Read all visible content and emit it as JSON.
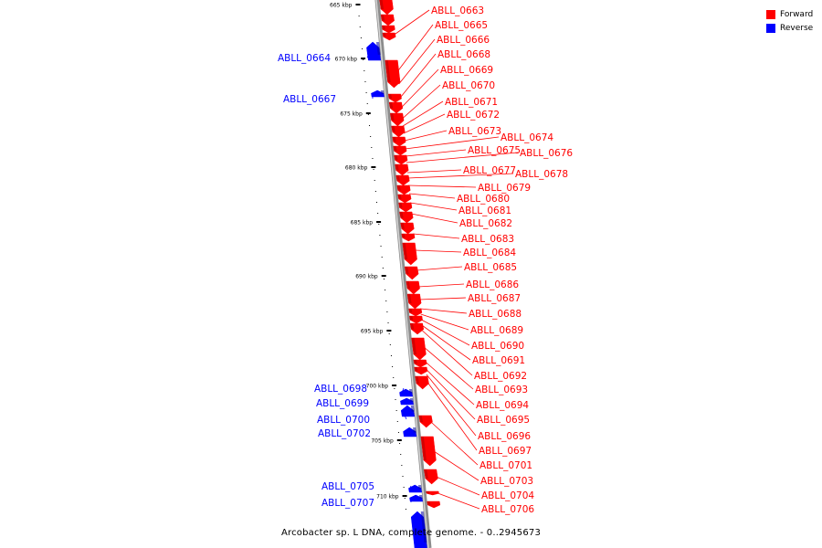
{
  "caption": "Arcobacter sp. L DNA, complete genome. - 0..2945673",
  "legend": [
    {
      "label": "Forward",
      "color": "#ff0000"
    },
    {
      "label": "Reverse",
      "color": "#0000ff"
    }
  ],
  "scale_ticks": [
    {
      "kbp": 665,
      "label": "665 kbp"
    },
    {
      "kbp": 670,
      "label": "670 kbp"
    },
    {
      "kbp": 675,
      "label": "675 kbp"
    },
    {
      "kbp": 680,
      "label": "680 kbp"
    },
    {
      "kbp": 685,
      "label": "685 kbp"
    },
    {
      "kbp": 690,
      "label": "690 kbp"
    },
    {
      "kbp": 695,
      "label": "695 kbp"
    },
    {
      "kbp": 700,
      "label": "700 kbp"
    },
    {
      "kbp": 705,
      "label": "705 kbp"
    },
    {
      "kbp": 710,
      "label": "710 kbp"
    }
  ],
  "genes": [
    {
      "id": "ABLL_0663",
      "strand": "forward"
    },
    {
      "id": "ABLL_0664",
      "strand": "reverse"
    },
    {
      "id": "ABLL_0665",
      "strand": "forward"
    },
    {
      "id": "ABLL_0666",
      "strand": "forward"
    },
    {
      "id": "ABLL_0667",
      "strand": "reverse"
    },
    {
      "id": "ABLL_0668",
      "strand": "forward"
    },
    {
      "id": "ABLL_0669",
      "strand": "forward"
    },
    {
      "id": "ABLL_0670",
      "strand": "forward"
    },
    {
      "id": "ABLL_0671",
      "strand": "forward"
    },
    {
      "id": "ABLL_0672",
      "strand": "forward"
    },
    {
      "id": "ABLL_0673",
      "strand": "forward"
    },
    {
      "id": "ABLL_0674",
      "strand": "forward"
    },
    {
      "id": "ABLL_0675",
      "strand": "forward"
    },
    {
      "id": "ABLL_0676",
      "strand": "forward"
    },
    {
      "id": "ABLL_0677",
      "strand": "forward"
    },
    {
      "id": "ABLL_0678",
      "strand": "forward"
    },
    {
      "id": "ABLL_0679",
      "strand": "forward"
    },
    {
      "id": "ABLL_0680",
      "strand": "forward"
    },
    {
      "id": "ABLL_0681",
      "strand": "forward"
    },
    {
      "id": "ABLL_0682",
      "strand": "forward"
    },
    {
      "id": "ABLL_0683",
      "strand": "forward"
    },
    {
      "id": "ABLL_0684",
      "strand": "forward"
    },
    {
      "id": "ABLL_0685",
      "strand": "forward"
    },
    {
      "id": "ABLL_0686",
      "strand": "forward"
    },
    {
      "id": "ABLL_0687",
      "strand": "forward"
    },
    {
      "id": "ABLL_0688",
      "strand": "forward"
    },
    {
      "id": "ABLL_0689",
      "strand": "forward"
    },
    {
      "id": "ABLL_0690",
      "strand": "forward"
    },
    {
      "id": "ABLL_0691",
      "strand": "forward"
    },
    {
      "id": "ABLL_0692",
      "strand": "forward"
    },
    {
      "id": "ABLL_0693",
      "strand": "forward"
    },
    {
      "id": "ABLL_0694",
      "strand": "forward"
    },
    {
      "id": "ABLL_0695",
      "strand": "forward"
    },
    {
      "id": "ABLL_0696",
      "strand": "forward"
    },
    {
      "id": "ABLL_0697",
      "strand": "forward"
    },
    {
      "id": "ABLL_0698",
      "strand": "reverse"
    },
    {
      "id": "ABLL_0699",
      "strand": "reverse"
    },
    {
      "id": "ABLL_0700",
      "strand": "reverse"
    },
    {
      "id": "ABLL_0701",
      "strand": "forward"
    },
    {
      "id": "ABLL_0702",
      "strand": "reverse"
    },
    {
      "id": "ABLL_0703",
      "strand": "forward"
    },
    {
      "id": "ABLL_0704",
      "strand": "forward"
    },
    {
      "id": "ABLL_0705",
      "strand": "reverse"
    },
    {
      "id": "ABLL_0706",
      "strand": "forward"
    },
    {
      "id": "ABLL_0707",
      "strand": "reverse"
    }
  ]
}
